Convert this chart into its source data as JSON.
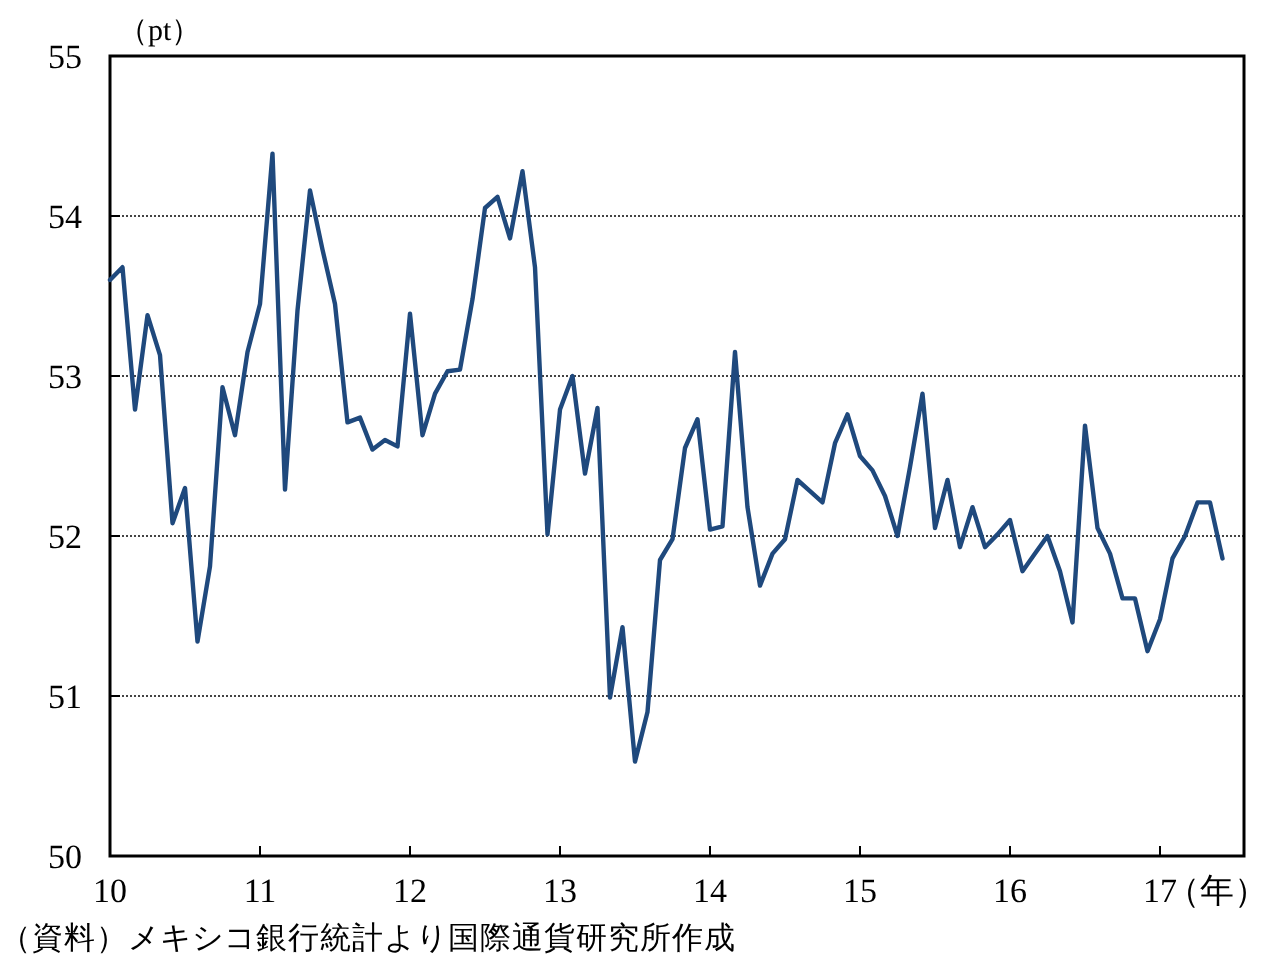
{
  "chart_data": {
    "type": "line",
    "ylabel": "（pt）",
    "xlabel": "（年）",
    "x": [
      10,
      10.0833,
      10.1667,
      10.25,
      10.3333,
      10.4167,
      10.5,
      10.5833,
      10.6667,
      10.75,
      10.8333,
      10.9167,
      11,
      11.0833,
      11.1667,
      11.25,
      11.3333,
      11.4167,
      11.5,
      11.5833,
      11.6667,
      11.75,
      11.8333,
      11.9167,
      12,
      12.0833,
      12.1667,
      12.25,
      12.3333,
      12.4167,
      12.5,
      12.5833,
      12.6667,
      12.75,
      12.8333,
      12.9167,
      13,
      13.0833,
      13.1667,
      13.25,
      13.3333,
      13.4167,
      13.5,
      13.5833,
      13.6667,
      13.75,
      13.8333,
      13.9167,
      14,
      14.0833,
      14.1667,
      14.25,
      14.3333,
      14.4167,
      14.5,
      14.5833,
      14.6667,
      14.75,
      14.8333,
      14.9167,
      15,
      15.0833,
      15.1667,
      15.25,
      15.3333,
      15.4167,
      15.5,
      15.5833,
      15.6667,
      15.75,
      15.8333,
      15.9167,
      16,
      16.0833,
      16.1667,
      16.25,
      16.3333,
      16.4167,
      16.5,
      16.5833,
      16.6667,
      16.75,
      16.8333,
      16.9167,
      17,
      17.0833,
      17.1667,
      17.25,
      17.3333,
      17.4167
    ],
    "series": [
      {
        "color": "#1f497d",
        "values": [
          53.6,
          53.68,
          52.79,
          53.38,
          53.13,
          52.08,
          52.3,
          51.34,
          51.81,
          52.93,
          52.63,
          53.15,
          53.45,
          54.39,
          52.29,
          53.41,
          54.16,
          53.79,
          53.45,
          52.71,
          52.74,
          52.54,
          52.6,
          52.56,
          53.39,
          52.63,
          52.89,
          53.03,
          53.04,
          53.48,
          54.05,
          54.12,
          53.86,
          54.28,
          53.68,
          52.01,
          52.79,
          53.0,
          52.39,
          52.8,
          50.99,
          51.43,
          50.59,
          50.9,
          51.85,
          51.98,
          52.55,
          52.73,
          52.04,
          52.06,
          53.15,
          52.18,
          51.69,
          51.89,
          51.98,
          52.35,
          52.28,
          52.21,
          52.58,
          52.76,
          52.5,
          52.41,
          52.25,
          52.0,
          52.43,
          52.89,
          52.05,
          52.35,
          51.93,
          52.18,
          51.93,
          52.01,
          52.1,
          51.78,
          51.89,
          52.0,
          51.78,
          51.46,
          52.69,
          52.05,
          51.89,
          51.61,
          51.61,
          51.28,
          51.48,
          51.86,
          52.0,
          52.21,
          52.21,
          51.86
        ]
      }
    ],
    "xlim": [
      10,
      17.56
    ],
    "xticks": [
      10,
      11,
      12,
      13,
      14,
      15,
      16,
      17
    ],
    "ylim": [
      50,
      55
    ],
    "yticks": [
      50,
      51,
      52,
      53,
      54,
      55
    ],
    "grid": "y",
    "line_style": "solid",
    "marker": "none",
    "annotations": [
      "（資料）メキシコ銀行統計より国際通貨研究所作成"
    ]
  }
}
